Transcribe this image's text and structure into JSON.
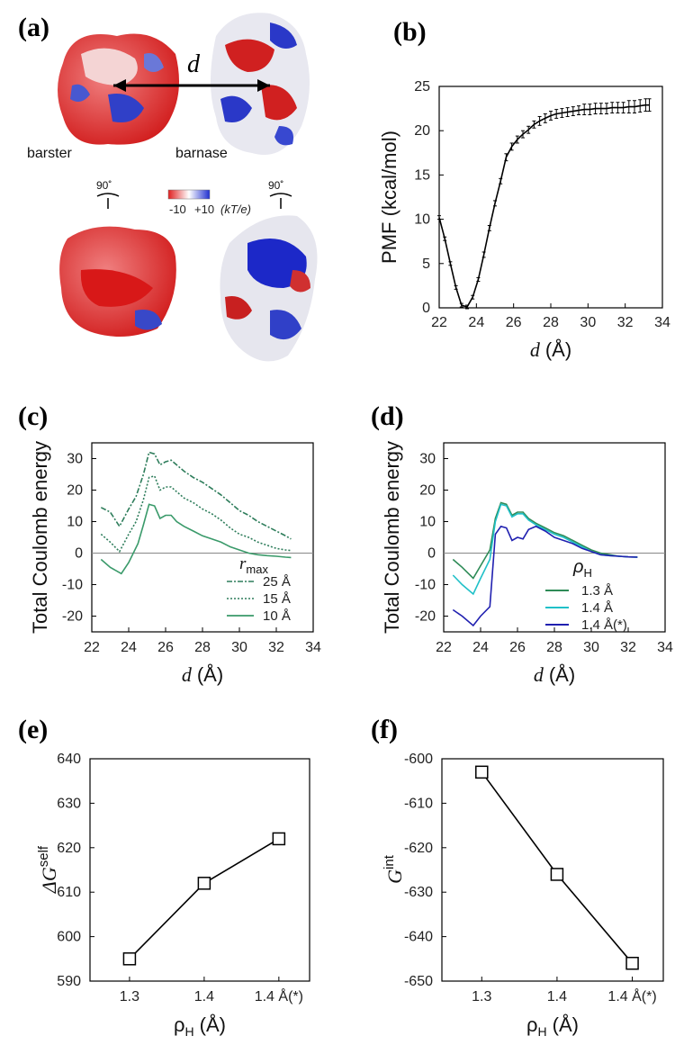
{
  "figure": {
    "panel_labels": [
      "(a)",
      "(b)",
      "(c)",
      "(d)",
      "(e)",
      "(f)"
    ],
    "panel_a": {
      "distance_label": "d",
      "protein_left": "barster",
      "protein_right": "barnase",
      "rotation_left": "90˚",
      "rotation_right": "90˚",
      "colorbar_min": "-10",
      "colorbar_max": "+10",
      "colorbar_units": "(kT/e)",
      "colors": {
        "negative": "#e02020",
        "neutral": "#ffffff",
        "positive": "#2030d0"
      }
    }
  },
  "chart_data": [
    {
      "id": "b",
      "type": "line",
      "title": "",
      "xlabel_var": "d",
      "xlabel_unit": "(Å)",
      "ylabel": "PMF (kcal/mol)",
      "xlim": [
        22,
        34
      ],
      "ylim": [
        0,
        25
      ],
      "xticks": [
        "22",
        "24",
        "26",
        "28",
        "30",
        "32",
        "34"
      ],
      "yticks": [
        "0",
        "5",
        "10",
        "15",
        "20",
        "25"
      ],
      "series": [
        {
          "name": "PMF",
          "color": "#000000",
          "errorbars": true,
          "x": [
            22.0,
            22.3,
            22.6,
            22.9,
            23.2,
            23.5,
            23.8,
            24.1,
            24.4,
            24.7,
            25.0,
            25.3,
            25.6,
            25.9,
            26.2,
            26.5,
            26.8,
            27.1,
            27.4,
            27.7,
            28.0,
            28.3,
            28.6,
            28.9,
            29.2,
            29.5,
            29.8,
            30.1,
            30.4,
            30.7,
            31.0,
            31.3,
            31.6,
            31.9,
            32.2,
            32.5,
            32.8,
            33.1,
            33.3
          ],
          "y": [
            10.2,
            7.8,
            5.0,
            2.3,
            0.3,
            0.1,
            1.2,
            3.2,
            6.0,
            9.0,
            11.8,
            14.3,
            17.0,
            18.2,
            19.0,
            19.6,
            20.1,
            20.7,
            21.1,
            21.4,
            21.7,
            21.9,
            22.0,
            22.1,
            22.2,
            22.3,
            22.4,
            22.4,
            22.5,
            22.5,
            22.5,
            22.6,
            22.6,
            22.6,
            22.7,
            22.7,
            22.8,
            22.9,
            22.9
          ],
          "err": [
            0.2,
            0.2,
            0.2,
            0.2,
            0.2,
            0.2,
            0.2,
            0.2,
            0.3,
            0.3,
            0.3,
            0.3,
            0.4,
            0.4,
            0.4,
            0.4,
            0.4,
            0.4,
            0.5,
            0.5,
            0.5,
            0.5,
            0.5,
            0.5,
            0.5,
            0.5,
            0.6,
            0.6,
            0.6,
            0.6,
            0.6,
            0.6,
            0.6,
            0.6,
            0.7,
            0.7,
            0.7,
            0.7,
            0.7
          ]
        }
      ]
    },
    {
      "id": "c",
      "type": "line",
      "xlabel_var": "d",
      "xlabel_unit": "(Å)",
      "ylabel": "Total Coulomb energy",
      "xlim": [
        22,
        34
      ],
      "ylim": [
        -25,
        35
      ],
      "xticks": [
        "22",
        "24",
        "26",
        "28",
        "30",
        "32",
        "34"
      ],
      "yticks": [
        "-20",
        "-10",
        "0",
        "10",
        "20",
        "30"
      ],
      "legend_title_var": "r",
      "legend_title_sub": "max",
      "zero_line": true,
      "series": [
        {
          "name": "25 Å",
          "color": "#2e7d5b",
          "dash": "6,2,2,2",
          "x": [
            22.5,
            23,
            23.5,
            24,
            24.4,
            24.8,
            25.1,
            25.4,
            25.7,
            26,
            26.3,
            26.6,
            27,
            27.5,
            28,
            28.5,
            29,
            29.5,
            30,
            30.5,
            31,
            31.5,
            32,
            32.5,
            32.8
          ],
          "y": [
            14.5,
            13,
            8.5,
            14,
            18,
            25,
            32,
            31.5,
            28,
            29,
            29.5,
            28,
            26,
            24,
            22.5,
            20.5,
            18.5,
            16,
            13.5,
            12,
            10,
            8.5,
            7,
            5.5,
            4.5
          ]
        },
        {
          "name": "15 Å",
          "color": "#2e7d5b",
          "dash": "2,2",
          "x": [
            22.5,
            23,
            23.5,
            24,
            24.4,
            24.8,
            25.1,
            25.4,
            25.7,
            26,
            26.3,
            26.6,
            27,
            27.5,
            28,
            28.5,
            29,
            29.5,
            30,
            30.5,
            31,
            31.5,
            32,
            32.5,
            32.8
          ],
          "y": [
            6,
            3.5,
            0.5,
            6,
            10,
            17,
            24,
            24.5,
            20,
            21,
            21,
            19.5,
            17.5,
            16,
            14,
            12.5,
            10.5,
            8,
            6,
            5,
            3.5,
            2.5,
            1.5,
            1,
            0.8
          ]
        },
        {
          "name": "10 Å",
          "color": "#3a9a6a",
          "dash": "",
          "x": [
            22.5,
            23,
            23.6,
            24,
            24.5,
            24.8,
            25.1,
            25.4,
            25.7,
            26,
            26.3,
            26.6,
            27,
            27.5,
            28,
            28.5,
            29,
            29.5,
            30,
            30.5,
            31,
            31.5,
            32,
            32.5,
            32.8
          ],
          "y": [
            -2,
            -4.5,
            -6.5,
            -3,
            3,
            9,
            15.5,
            15,
            11,
            12,
            12,
            10,
            8.5,
            7,
            5.5,
            4.5,
            3.5,
            2,
            1,
            0,
            -0.5,
            -0.8,
            -1,
            -1.3,
            -1.4
          ]
        }
      ]
    },
    {
      "id": "d",
      "type": "line",
      "xlabel_var": "d",
      "xlabel_unit": "(Å)",
      "ylabel": "Total Coulomb energy",
      "xlim": [
        22,
        34
      ],
      "ylim": [
        -25,
        35
      ],
      "xticks": [
        "22",
        "24",
        "26",
        "28",
        "30",
        "32",
        "34"
      ],
      "yticks": [
        "-20",
        "-10",
        "0",
        "10",
        "20",
        "30"
      ],
      "legend_title_var": "ρ",
      "legend_title_sub": "H",
      "zero_line": true,
      "series": [
        {
          "name": "1.3 Å",
          "color": "#2e8b57",
          "x": [
            22.5,
            23,
            23.6,
            24,
            24.5,
            24.8,
            25.1,
            25.4,
            25.7,
            26,
            26.3,
            26.6,
            27,
            27.5,
            28,
            28.5,
            29,
            29.5,
            30,
            30.5,
            31,
            31.5,
            32,
            32.5
          ],
          "y": [
            -2,
            -4.5,
            -8,
            -4,
            1,
            11,
            16,
            15.5,
            12,
            13,
            13,
            11,
            9.5,
            8,
            6.5,
            5.5,
            4,
            2.5,
            1,
            0,
            -0.5,
            -1,
            -1.2,
            -1.3
          ]
        },
        {
          "name": "1.4 Å",
          "color": "#20c0c8",
          "x": [
            22.5,
            23,
            23.6,
            24,
            24.5,
            24.8,
            25.1,
            25.4,
            25.7,
            26,
            26.3,
            26.6,
            27,
            27.5,
            28,
            28.5,
            29,
            29.5,
            30,
            30.5,
            31,
            31.5,
            32,
            32.5
          ],
          "y": [
            -7,
            -10,
            -13,
            -8,
            -2,
            10,
            15.5,
            15,
            11.5,
            12.5,
            12.5,
            10.5,
            9,
            7.5,
            6,
            5,
            3.5,
            2,
            0.5,
            -0.5,
            -0.8,
            -1,
            -1.2,
            -1.3
          ]
        },
        {
          "name": "1.4 Å(*)",
          "color": "#2020b0",
          "x": [
            22.5,
            23,
            23.6,
            24,
            24.5,
            24.8,
            25.1,
            25.4,
            25.7,
            26,
            26.3,
            26.6,
            27,
            27.5,
            28,
            28.5,
            29,
            29.5,
            30,
            30.5,
            31,
            31.5,
            32,
            32.5
          ],
          "y": [
            -18,
            -20,
            -23,
            -20,
            -17,
            6,
            8.5,
            8,
            4,
            5,
            4.5,
            7.5,
            8.5,
            7,
            5,
            4,
            3,
            1.5,
            0.5,
            -0.5,
            -0.8,
            -1,
            -1.2,
            -1.3
          ]
        }
      ]
    },
    {
      "id": "e",
      "type": "line",
      "xlabel_var": "ρ",
      "xlabel_sub": "H",
      "xlabel_unit": "(Å)",
      "ylabel_prefix": "ΔG",
      "ylabel_sup": "self",
      "categories": [
        "1.3",
        "1.4",
        "1.4 Å(*)"
      ],
      "ylim": [
        590,
        640
      ],
      "yticks": [
        "590",
        "600",
        "610",
        "620",
        "630",
        "640"
      ],
      "series": [
        {
          "name": "ΔG self",
          "marker": "square",
          "color": "#000000",
          "values": [
            595,
            612,
            622
          ]
        }
      ]
    },
    {
      "id": "f",
      "type": "line",
      "xlabel_var": "ρ",
      "xlabel_sub": "H",
      "xlabel_unit": "(Å)",
      "ylabel_prefix": "G",
      "ylabel_sup": "int",
      "categories": [
        "1.3",
        "1.4",
        "1.4 Å(*)"
      ],
      "ylim": [
        -650,
        -600
      ],
      "yticks": [
        "-650",
        "-640",
        "-630",
        "-620",
        "-610",
        "-600"
      ],
      "series": [
        {
          "name": "G int",
          "marker": "square",
          "color": "#000000",
          "values": [
            -603,
            -626,
            -646
          ]
        }
      ]
    }
  ]
}
